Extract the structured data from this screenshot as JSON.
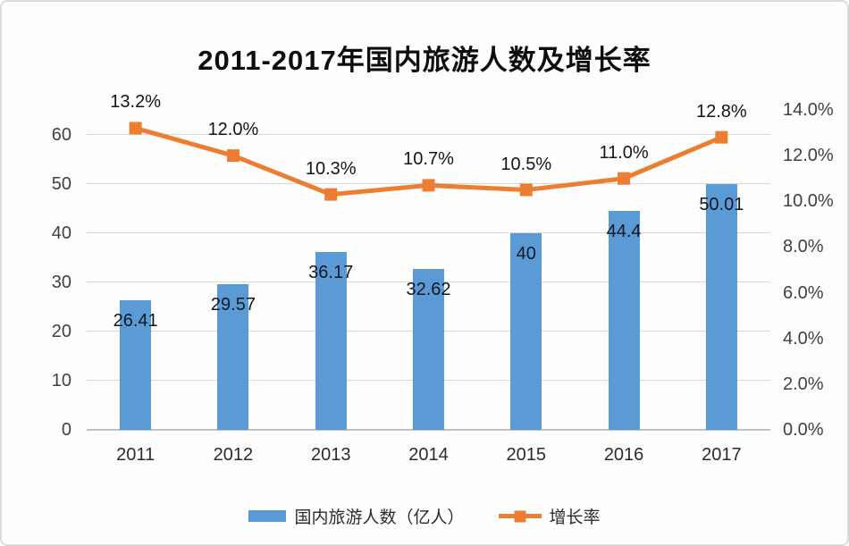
{
  "chart_data": {
    "type": "combo-bar-line",
    "title": "2011-2017年国内旅游人数及增长率",
    "categories": [
      "2011",
      "2012",
      "2013",
      "2014",
      "2015",
      "2016",
      "2017"
    ],
    "series": [
      {
        "name": "国内旅游人数（亿人）",
        "type": "bar",
        "axis": "left",
        "values": [
          26.41,
          29.57,
          36.17,
          32.62,
          40,
          44.4,
          50.01
        ],
        "labels": [
          "26.41",
          "29.57",
          "36.17",
          "32.62",
          "40",
          "44.4",
          "50.01"
        ],
        "color": "#5B9BD5"
      },
      {
        "name": "增长率",
        "type": "line",
        "axis": "right",
        "values": [
          13.2,
          12.0,
          10.3,
          10.7,
          10.5,
          11.0,
          12.8
        ],
        "labels": [
          "13.2%",
          "12.0%",
          "10.3%",
          "10.7%",
          "10.5%",
          "11.0%",
          "12.8%"
        ],
        "color": "#ED7D31"
      }
    ],
    "left_axis": {
      "tick_labels": [
        "0",
        "10",
        "20",
        "30",
        "40",
        "50",
        "60"
      ],
      "tick_values": [
        0,
        10,
        20,
        30,
        40,
        50,
        60
      ],
      "max": 65
    },
    "right_axis": {
      "tick_labels": [
        "0.0%",
        "2.0%",
        "4.0%",
        "6.0%",
        "8.0%",
        "10.0%",
        "12.0%",
        "14.0%"
      ],
      "tick_values": [
        0,
        2,
        4,
        6,
        8,
        10,
        12,
        14
      ],
      "max": 14
    },
    "grid": true,
    "legend_position": "bottom",
    "colors": {
      "bar": "#5B9BD5",
      "line": "#ED7D31",
      "gridline": "#d9d9d9",
      "axis_line": "#c0c0c0",
      "text": "#404040"
    }
  }
}
